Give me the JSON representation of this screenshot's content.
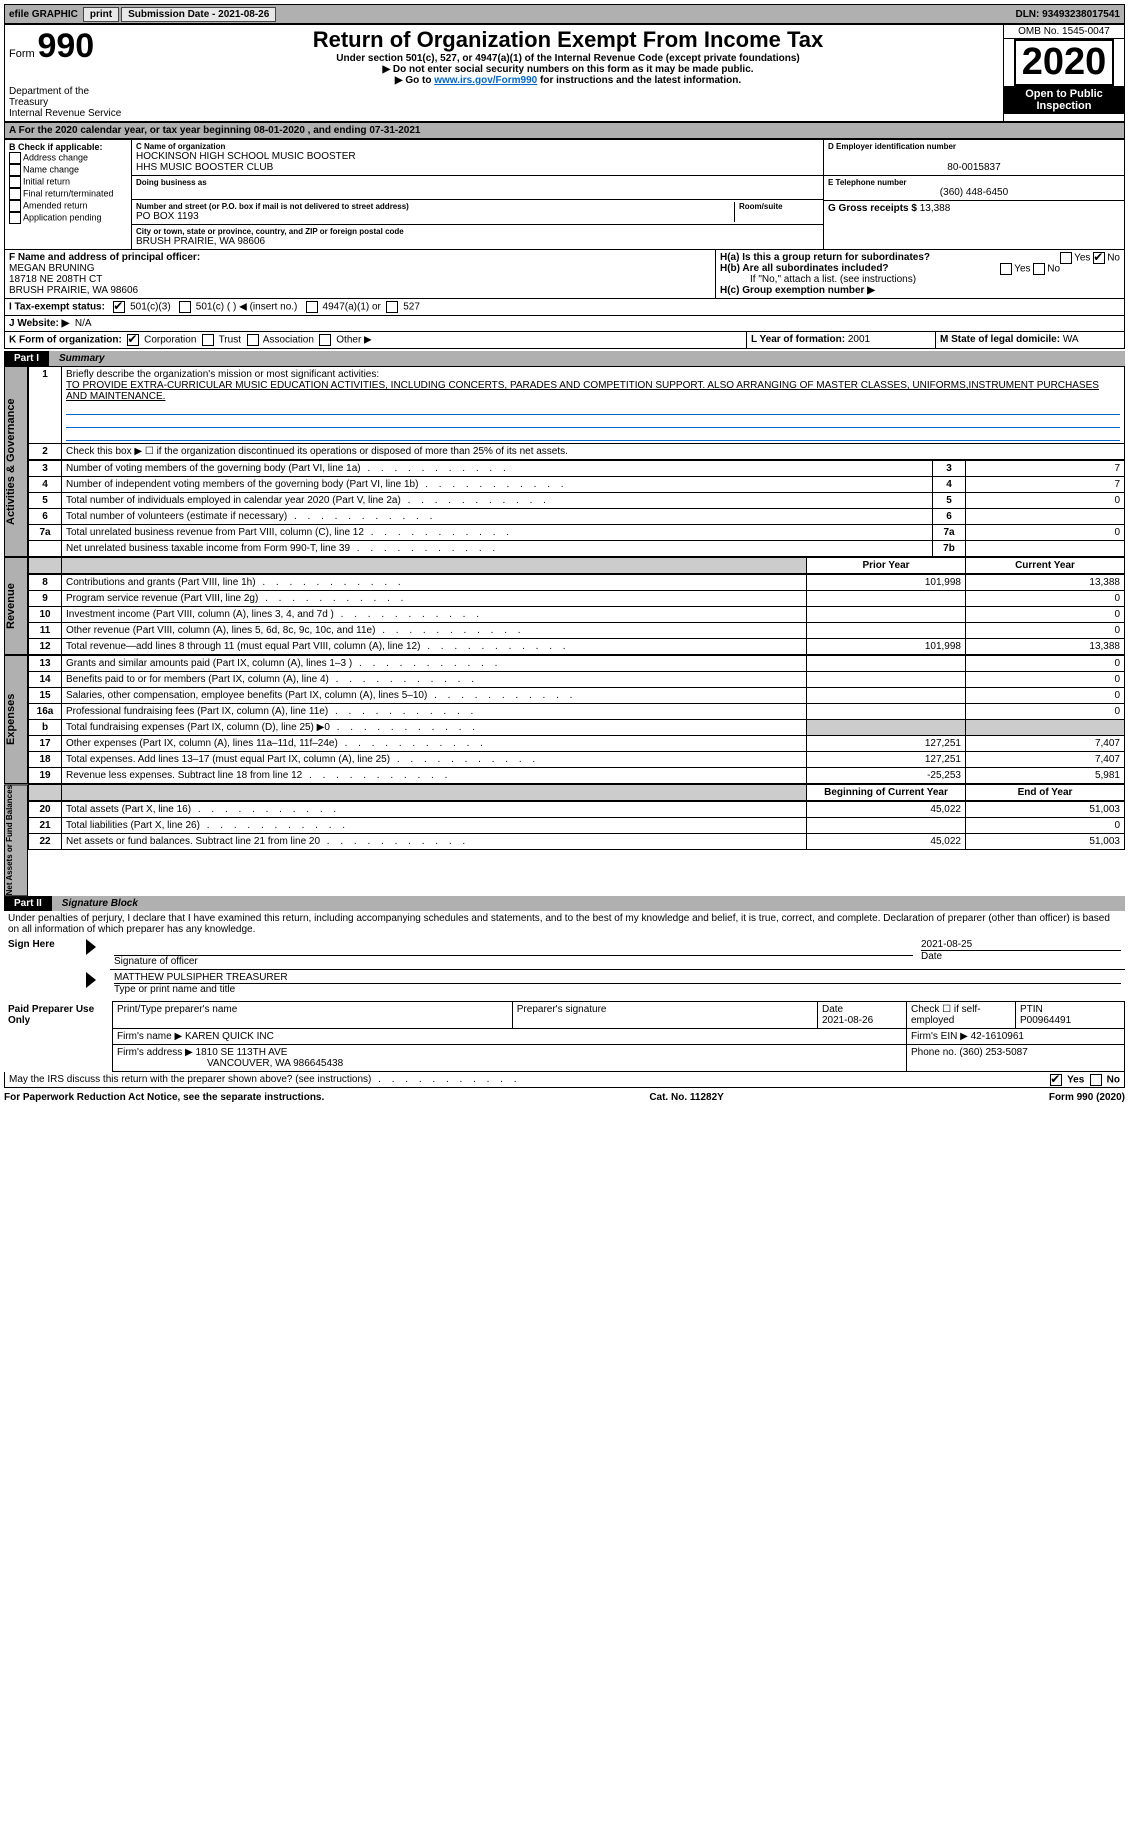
{
  "topbar": {
    "efile": "efile GRAPHIC",
    "print": "print",
    "sub_label": "Submission Date - ",
    "sub_date": "2021-08-26",
    "dln": "DLN: 93493238017541"
  },
  "header": {
    "form_prefix": "Form",
    "form_num": "990",
    "dept": "Department of the Treasury\nInternal Revenue Service",
    "title": "Return of Organization Exempt From Income Tax",
    "under": "Under section 501(c), 527, or 4947(a)(1) of the Internal Revenue Code (except private foundations)",
    "note1": "▶ Do not enter social security numbers on this form as it may be made public.",
    "note2_pre": "▶ Go to ",
    "note2_link": "www.irs.gov/Form990",
    "note2_post": " for instructions and the latest information.",
    "omb": "OMB No. 1545-0047",
    "year": "2020",
    "open": "Open to Public Inspection"
  },
  "taxyear": "A For the 2020 calendar year, or tax year beginning 08-01-2020   , and ending 07-31-2021",
  "B": {
    "label": "B Check if applicable:",
    "items": [
      "Address change",
      "Name change",
      "Initial return",
      "Final return/terminated",
      "Amended return",
      "Application pending"
    ]
  },
  "C": {
    "name_label": "C Name of organization",
    "name1": "HOCKINSON HIGH SCHOOL MUSIC BOOSTER",
    "name2": "HHS MUSIC BOOSTER CLUB",
    "dba_label": "Doing business as",
    "addr_label": "Number and street (or P.O. box if mail is not delivered to street address)",
    "room_label": "Room/suite",
    "addr": "PO BOX 1193",
    "city_label": "City or town, state or province, country, and ZIP or foreign postal code",
    "city": "BRUSH PRAIRIE, WA  98606"
  },
  "D": {
    "label": "D Employer identification number",
    "val": "80-0015837"
  },
  "E": {
    "label": "E Telephone number",
    "val": "(360) 448-6450"
  },
  "G": {
    "label": "G Gross receipts $ ",
    "val": "13,388"
  },
  "F": {
    "label": "F  Name and address of principal officer:",
    "name": "MEGAN BRUNING",
    "addr1": "18718 NE 208TH CT",
    "addr2": "BRUSH PRAIRIE, WA  98606"
  },
  "H": {
    "a": "H(a)  Is this a group return for subordinates?",
    "b": "H(b)  Are all subordinates included?",
    "bnote": "If \"No,\" attach a list. (see instructions)",
    "c": "H(c)  Group exemption number ▶",
    "yes": "Yes",
    "no": "No"
  },
  "I": {
    "label": "I    Tax-exempt status:",
    "o1": "501(c)(3)",
    "o2": "501(c) (  ) ◀ (insert no.)",
    "o3": "4947(a)(1) or",
    "o4": "527"
  },
  "J": {
    "label": "J   Website: ▶",
    "val": "N/A"
  },
  "K": {
    "label": "K Form of organization:",
    "o1": "Corporation",
    "o2": "Trust",
    "o3": "Association",
    "o4": "Other ▶"
  },
  "L": {
    "label": "L Year of formation: ",
    "val": "2001"
  },
  "M": {
    "label": "M State of legal domicile: ",
    "val": "WA"
  },
  "part1": {
    "tag": "Part I",
    "title": "Summary"
  },
  "mission": {
    "prompt": "Briefly describe the organization's mission or most significant activities:",
    "text": "TO PROVIDE EXTRA-CURRICULAR MUSIC EDUCATION ACTIVITIES, INCLUDING CONCERTS, PARADES AND COMPETITION SUPPORT. ALSO ARRANGING OF MASTER CLASSES, UNIFORMS,INSTRUMENT PURCHASES AND MAINTENANCE."
  },
  "line2": "Check this box ▶ ☐  if the organization discontinued its operations or disposed of more than 25% of its net assets.",
  "gov_lines": [
    {
      "n": "3",
      "d": "Number of voting members of the governing body (Part VI, line 1a)",
      "b": "3",
      "v": "7"
    },
    {
      "n": "4",
      "d": "Number of independent voting members of the governing body (Part VI, line 1b)",
      "b": "4",
      "v": "7"
    },
    {
      "n": "5",
      "d": "Total number of individuals employed in calendar year 2020 (Part V, line 2a)",
      "b": "5",
      "v": "0"
    },
    {
      "n": "6",
      "d": "Total number of volunteers (estimate if necessary)",
      "b": "6",
      "v": ""
    },
    {
      "n": "7a",
      "d": "Total unrelated business revenue from Part VIII, column (C), line 12",
      "b": "7a",
      "v": "0"
    },
    {
      "n": "",
      "d": "Net unrelated business taxable income from Form 990-T, line 39",
      "b": "7b",
      "v": ""
    }
  ],
  "prior_label": "Prior Year",
  "current_label": "Current Year",
  "rev_lines": [
    {
      "n": "8",
      "d": "Contributions and grants (Part VIII, line 1h)",
      "p": "101,998",
      "c": "13,388"
    },
    {
      "n": "9",
      "d": "Program service revenue (Part VIII, line 2g)",
      "p": "",
      "c": "0"
    },
    {
      "n": "10",
      "d": "Investment income (Part VIII, column (A), lines 3, 4, and 7d )",
      "p": "",
      "c": "0"
    },
    {
      "n": "11",
      "d": "Other revenue (Part VIII, column (A), lines 5, 6d, 8c, 9c, 10c, and 11e)",
      "p": "",
      "c": "0"
    },
    {
      "n": "12",
      "d": "Total revenue—add lines 8 through 11 (must equal Part VIII, column (A), line 12)",
      "p": "101,998",
      "c": "13,388"
    }
  ],
  "exp_lines": [
    {
      "n": "13",
      "d": "Grants and similar amounts paid (Part IX, column (A), lines 1–3 )",
      "p": "",
      "c": "0"
    },
    {
      "n": "14",
      "d": "Benefits paid to or for members (Part IX, column (A), line 4)",
      "p": "",
      "c": "0"
    },
    {
      "n": "15",
      "d": "Salaries, other compensation, employee benefits (Part IX, column (A), lines 5–10)",
      "p": "",
      "c": "0"
    },
    {
      "n": "16a",
      "d": "Professional fundraising fees (Part IX, column (A), line 11e)",
      "p": "",
      "c": "0"
    },
    {
      "n": "b",
      "d": "Total fundraising expenses (Part IX, column (D), line 25) ▶0",
      "p": "SHADE",
      "c": "SHADE"
    },
    {
      "n": "17",
      "d": "Other expenses (Part IX, column (A), lines 11a–11d, 11f–24e)",
      "p": "127,251",
      "c": "7,407"
    },
    {
      "n": "18",
      "d": "Total expenses. Add lines 13–17 (must equal Part IX, column (A), line 25)",
      "p": "127,251",
      "c": "7,407"
    },
    {
      "n": "19",
      "d": "Revenue less expenses. Subtract line 18 from line 12",
      "p": "-25,253",
      "c": "5,981"
    }
  ],
  "begin_label": "Beginning of Current Year",
  "end_label": "End of Year",
  "net_lines": [
    {
      "n": "20",
      "d": "Total assets (Part X, line 16)",
      "p": "45,022",
      "c": "51,003"
    },
    {
      "n": "21",
      "d": "Total liabilities (Part X, line 26)",
      "p": "",
      "c": "0"
    },
    {
      "n": "22",
      "d": "Net assets or fund balances. Subtract line 21 from line 20",
      "p": "45,022",
      "c": "51,003"
    }
  ],
  "part2": {
    "tag": "Part II",
    "title": "Signature Block"
  },
  "penalties": "Under penalties of perjury, I declare that I have examined this return, including accompanying schedules and statements, and to the best of my knowledge and belief, it is true, correct, and complete. Declaration of preparer (other than officer) is based on all information of which preparer has any knowledge.",
  "sign": {
    "side": "Sign Here",
    "sig_label": "Signature of officer",
    "date_label": "Date",
    "date": "2021-08-25",
    "name": "MATTHEW PULSIPHER TREASURER",
    "name_label": "Type or print name and title"
  },
  "paid": {
    "side": "Paid Preparer Use Only",
    "h1": "Print/Type preparer's name",
    "h2": "Preparer's signature",
    "h3": "Date",
    "h4": "Check ☐ if self-employed",
    "h5": "PTIN",
    "date": "2021-08-26",
    "ptin": "P00964491",
    "firm_label": "Firm's name   ▶",
    "firm": "KAREN QUICK INC",
    "ein_label": "Firm's EIN ▶",
    "ein": "42-1610961",
    "addr_label": "Firm's address ▶",
    "addr": "1810 SE 113TH AVE",
    "addr2": "VANCOUVER, WA  986645438",
    "phone_label": "Phone no. ",
    "phone": "(360) 253-5087"
  },
  "discuss": "May the IRS discuss this return with the preparer shown above? (see instructions)",
  "footer": {
    "left": "For Paperwork Reduction Act Notice, see the separate instructions.",
    "mid": "Cat. No. 11282Y",
    "right": "Form 990 (2020)"
  },
  "vlabels": {
    "gov": "Activities & Governance",
    "rev": "Revenue",
    "exp": "Expenses",
    "net": "Net Assets or Fund Balances"
  }
}
